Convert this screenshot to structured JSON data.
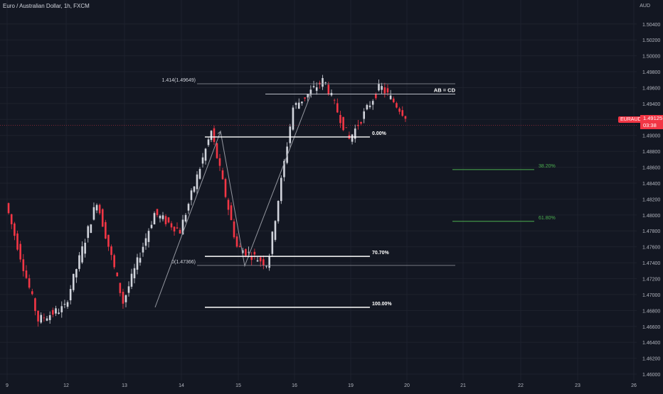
{
  "header": {
    "title": "Euro / Australian Dollar, 1h, FXCM",
    "currency": "AUD"
  },
  "badges": {
    "symbol": "EURAUD",
    "price": "1.49125",
    "countdown": "03:38"
  },
  "colors": {
    "background": "#131722",
    "up": "#d1d4dc",
    "down": "#f23645",
    "grid": "#1e222d",
    "axis_text": "#b2b5be",
    "fib_white": "#ffffff",
    "fib_green": "#4caf50",
    "line_gray": "#9598a1"
  },
  "chart_data": {
    "type": "candlestick",
    "title": "Euro / Australian Dollar, 1h, FXCM",
    "xlabel": "",
    "ylabel": "AUD",
    "ylim": [
      1.4592,
      1.5063
    ],
    "x_ticks": [
      "9",
      "12",
      "13",
      "14",
      "15",
      "16",
      "19",
      "20",
      "21",
      "22",
      "23",
      "26"
    ],
    "y_ticks": [
      "1.50400",
      "1.50200",
      "1.50000",
      "1.49800",
      "1.49600",
      "1.49400",
      "1.49200",
      "1.49000",
      "1.48800",
      "1.48600",
      "1.48400",
      "1.48200",
      "1.48000",
      "1.47800",
      "1.47600",
      "1.47400",
      "1.47200",
      "1.47000",
      "1.46800",
      "1.46600",
      "1.46400",
      "1.46200",
      "1.46000"
    ],
    "last_price": 1.49125,
    "grid": true,
    "series": [
      {
        "segment": 1,
        "from_day": "9",
        "to_day": "12",
        "open": 1.4815,
        "low": 1.4668,
        "close": 1.4684
      },
      {
        "segment": 2,
        "from_day": "12",
        "to_day": "13",
        "open": 1.4684,
        "high": 1.4818,
        "close": 1.469
      },
      {
        "segment": 3,
        "from_day": "13",
        "to_day": "14",
        "open": 1.469,
        "high": 1.4802,
        "close": 1.478
      },
      {
        "segment": 4,
        "from_day": "14",
        "to_day": "15",
        "open": 1.478,
        "high": 1.4905,
        "close": 1.476
      },
      {
        "segment": 5,
        "from_day": "15",
        "to_day": "16",
        "open": 1.476,
        "low": 1.4738,
        "close": 1.4935
      },
      {
        "segment": 6,
        "from_day": "16",
        "to_day": "19",
        "open": 1.4935,
        "high": 1.497,
        "close": 1.4895
      },
      {
        "segment": 7,
        "from_day": "19",
        "to_day": "20",
        "open": 1.4895,
        "high": 1.4962,
        "close": 1.4925
      }
    ],
    "annotations": {
      "abcd_label": "AB = CD",
      "ext_label": "1.414(1.49649)",
      "ext_level": 1.49649,
      "ab_top_level": 1.4952,
      "zero_label": "0(1.47366)",
      "zero_level": 1.47366,
      "abcd_points": [
        1.4684,
        1.4905,
        1.4736,
        1.4952
      ],
      "retracements": [
        {
          "label": "0.00%",
          "level": 1.4898
        },
        {
          "label": "70.70%",
          "level": 1.4748
        },
        {
          "label": "100.00%",
          "level": 1.4684
        }
      ],
      "targets": [
        {
          "label": "38.20%",
          "level": 1.4857
        },
        {
          "label": "61.80%",
          "level": 1.4792
        }
      ]
    }
  }
}
